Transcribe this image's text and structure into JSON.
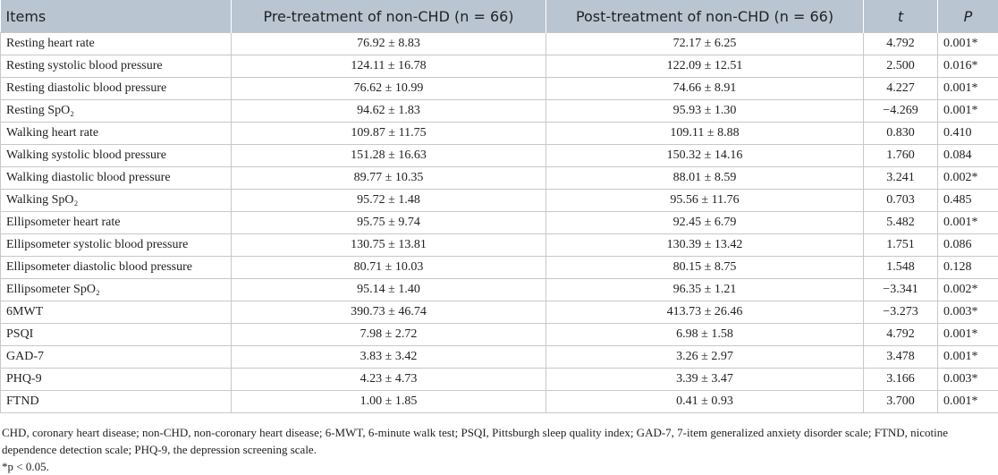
{
  "table": {
    "header": [
      "Items",
      "Pre-treatment of non-CHD (n = 66)",
      "Post-treatment of non-CHD (n = 66)",
      "t",
      "P"
    ],
    "rows": [
      [
        "Resting heart rate",
        "76.92 ± 8.83",
        "72.17 ± 6.25",
        "4.792",
        "0.001*"
      ],
      [
        "Resting systolic blood pressure",
        "124.11 ± 16.78",
        "122.09 ± 12.51",
        "2.500",
        "0.016*"
      ],
      [
        "Resting diastolic blood pressure",
        "76.62 ± 10.99",
        "74.66 ± 8.91",
        "4.227",
        "0.001*"
      ],
      [
        "Resting SpO₂",
        "94.62 ± 1.83",
        "95.93 ± 1.30",
        "−4.269",
        "0.001*"
      ],
      [
        "Walking heart rate",
        "109.87 ± 11.75",
        "109.11 ± 8.88",
        "0.830",
        "0.410"
      ],
      [
        "Walking systolic blood pressure",
        "151.28 ± 16.63",
        "150.32 ± 14.16",
        "1.760",
        "0.084"
      ],
      [
        "Walking diastolic blood pressure",
        "89.77 ± 10.35",
        "88.01 ± 8.59",
        "3.241",
        "0.002*"
      ],
      [
        "Walking SpO₂",
        "95.72 ± 1.48",
        "95.56 ± 11.76",
        "0.703",
        "0.485"
      ],
      [
        "Ellipsometer heart rate",
        "95.75 ± 9.74",
        "92.45 ± 6.79",
        "5.482",
        "0.001*"
      ],
      [
        "Ellipsometer systolic blood pressure",
        "130.75 ± 13.81",
        "130.39 ± 13.42",
        "1.751",
        "0.086"
      ],
      [
        "Ellipsometer diastolic blood pressure",
        "80.71 ± 10.03",
        "80.15 ± 8.75",
        "1.548",
        "0.128"
      ],
      [
        "Ellipsometer SpO₂",
        "95.14 ± 1.40",
        "96.35 ± 1.21",
        "−3.341",
        "0.002*"
      ],
      [
        "6MWT",
        "390.73 ± 46.74",
        "413.73 ± 26.46",
        "−3.273",
        "0.003*"
      ],
      [
        "PSQI",
        "7.98 ± 2.72",
        "6.98 ± 1.58",
        "4.792",
        "0.001*"
      ],
      [
        "GAD-7",
        "3.83 ± 3.42",
        "3.26 ± 2.97",
        "3.478",
        "0.001*"
      ],
      [
        "PHQ-9",
        "4.23 ± 4.73",
        "3.39 ± 3.47",
        "3.166",
        "0.003*"
      ],
      [
        "FTND",
        "1.00 ± 1.85",
        "0.41 ± 0.93",
        "3.700",
        "0.001*"
      ]
    ]
  },
  "footnotes": [
    "CHD, coronary heart disease; non-CHD, non-coronary heart disease; 6-MWT, 6-minute walk test; PSQI, Pittsburgh sleep quality index; GAD-7, 7-item generalized anxiety disorder scale; FTND, nicotine dependence detection scale; PHQ-9, the depression screening scale.",
    "*p < 0.05."
  ]
}
